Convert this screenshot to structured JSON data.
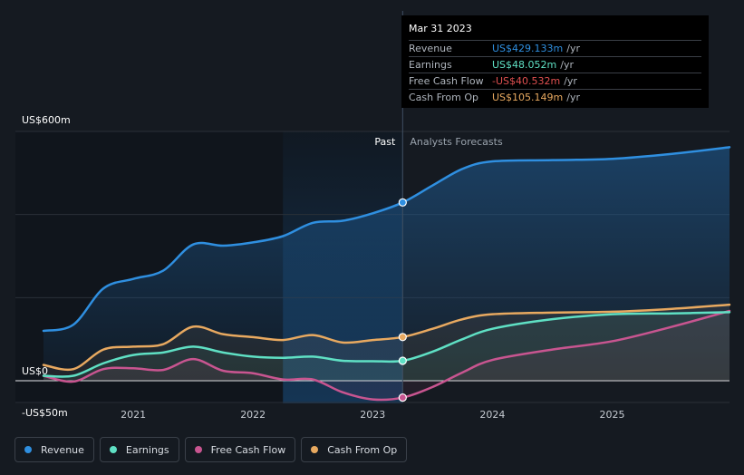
{
  "chart_data": {
    "type": "line",
    "title": "",
    "x_start": 2020.25,
    "x_end": 2025.98,
    "ylim": [
      -50,
      600
    ],
    "y_labels": {
      "top": "US$600m",
      "zero": "US$0",
      "bottom": "-US$50m"
    },
    "x_ticks": [
      {
        "value": 2021.0,
        "label": "2021"
      },
      {
        "value": 2022.0,
        "label": "2022"
      },
      {
        "value": 2023.0,
        "label": "2023"
      },
      {
        "value": 2024.0,
        "label": "2024"
      },
      {
        "value": 2025.0,
        "label": "2025"
      }
    ],
    "past_label": "Past",
    "forecast_label": "Analysts Forecasts",
    "divider_x": 2023.25,
    "highlight_start": 2022.25,
    "series": [
      {
        "name": "Revenue",
        "color": "#2f8fe0",
        "fill": true,
        "points": [
          [
            2020.25,
            120
          ],
          [
            2020.5,
            135
          ],
          [
            2020.75,
            222
          ],
          [
            2021.0,
            245
          ],
          [
            2021.25,
            265
          ],
          [
            2021.5,
            328
          ],
          [
            2021.75,
            325
          ],
          [
            2022.0,
            333
          ],
          [
            2022.25,
            348
          ],
          [
            2022.5,
            380
          ],
          [
            2022.75,
            385
          ],
          [
            2023.0,
            403
          ],
          [
            2023.25,
            429.133
          ],
          [
            2023.5,
            470
          ],
          [
            2023.75,
            510
          ],
          [
            2024.0,
            528
          ],
          [
            2024.5,
            531
          ],
          [
            2025.0,
            534
          ],
          [
            2025.5,
            546
          ],
          [
            2025.98,
            562
          ]
        ]
      },
      {
        "name": "Earnings",
        "color": "#5fe0c4",
        "points": [
          [
            2020.25,
            12
          ],
          [
            2020.5,
            12
          ],
          [
            2020.75,
            42
          ],
          [
            2021.0,
            62
          ],
          [
            2021.25,
            68
          ],
          [
            2021.5,
            82
          ],
          [
            2021.75,
            68
          ],
          [
            2022.0,
            58
          ],
          [
            2022.25,
            55
          ],
          [
            2022.5,
            58
          ],
          [
            2022.75,
            48
          ],
          [
            2023.0,
            47
          ],
          [
            2023.25,
            48.052
          ],
          [
            2023.5,
            70
          ],
          [
            2023.75,
            100
          ],
          [
            2024.0,
            125
          ],
          [
            2024.5,
            148
          ],
          [
            2025.0,
            160
          ],
          [
            2025.5,
            162
          ],
          [
            2025.98,
            165
          ]
        ]
      },
      {
        "name": "Free Cash Flow",
        "color": "#c85590",
        "points": [
          [
            2020.25,
            12
          ],
          [
            2020.5,
            -2
          ],
          [
            2020.75,
            28
          ],
          [
            2021.0,
            30
          ],
          [
            2021.25,
            26
          ],
          [
            2021.5,
            52
          ],
          [
            2021.75,
            24
          ],
          [
            2022.0,
            18
          ],
          [
            2022.25,
            3
          ],
          [
            2022.5,
            3
          ],
          [
            2022.75,
            -28
          ],
          [
            2023.0,
            -45
          ],
          [
            2023.25,
            -40.532
          ],
          [
            2023.5,
            -15
          ],
          [
            2023.75,
            20
          ],
          [
            2024.0,
            50
          ],
          [
            2024.5,
            75
          ],
          [
            2025.0,
            95
          ],
          [
            2025.5,
            130
          ],
          [
            2025.98,
            168
          ]
        ]
      },
      {
        "name": "Cash From Op",
        "color": "#e8a960",
        "points": [
          [
            2020.25,
            38
          ],
          [
            2020.5,
            28
          ],
          [
            2020.75,
            75
          ],
          [
            2021.0,
            82
          ],
          [
            2021.25,
            88
          ],
          [
            2021.5,
            130
          ],
          [
            2021.75,
            112
          ],
          [
            2022.0,
            105
          ],
          [
            2022.25,
            98
          ],
          [
            2022.5,
            110
          ],
          [
            2022.75,
            92
          ],
          [
            2023.0,
            98
          ],
          [
            2023.25,
            105.149
          ],
          [
            2023.5,
            125
          ],
          [
            2023.75,
            148
          ],
          [
            2024.0,
            160
          ],
          [
            2024.5,
            164
          ],
          [
            2025.0,
            166
          ],
          [
            2025.5,
            173
          ],
          [
            2025.98,
            183
          ]
        ]
      }
    ],
    "markers_at": 2023.25
  },
  "tooltip": {
    "date": "Mar 31 2023",
    "rows": [
      {
        "name": "Revenue",
        "value": "US$429.133m",
        "unit": "/yr",
        "color": "#2f8fe0"
      },
      {
        "name": "Earnings",
        "value": "US$48.052m",
        "unit": "/yr",
        "color": "#5fe0c4"
      },
      {
        "name": "Free Cash Flow",
        "value": "-US$40.532m",
        "unit": "/yr",
        "color": "#e05050"
      },
      {
        "name": "Cash From Op",
        "value": "US$105.149m",
        "unit": "/yr",
        "color": "#e8a960"
      }
    ]
  },
  "legend": [
    {
      "label": "Revenue",
      "color": "#2f8fe0"
    },
    {
      "label": "Earnings",
      "color": "#5fe0c4"
    },
    {
      "label": "Free Cash Flow",
      "color": "#c85590"
    },
    {
      "label": "Cash From Op",
      "color": "#e8a960"
    }
  ]
}
